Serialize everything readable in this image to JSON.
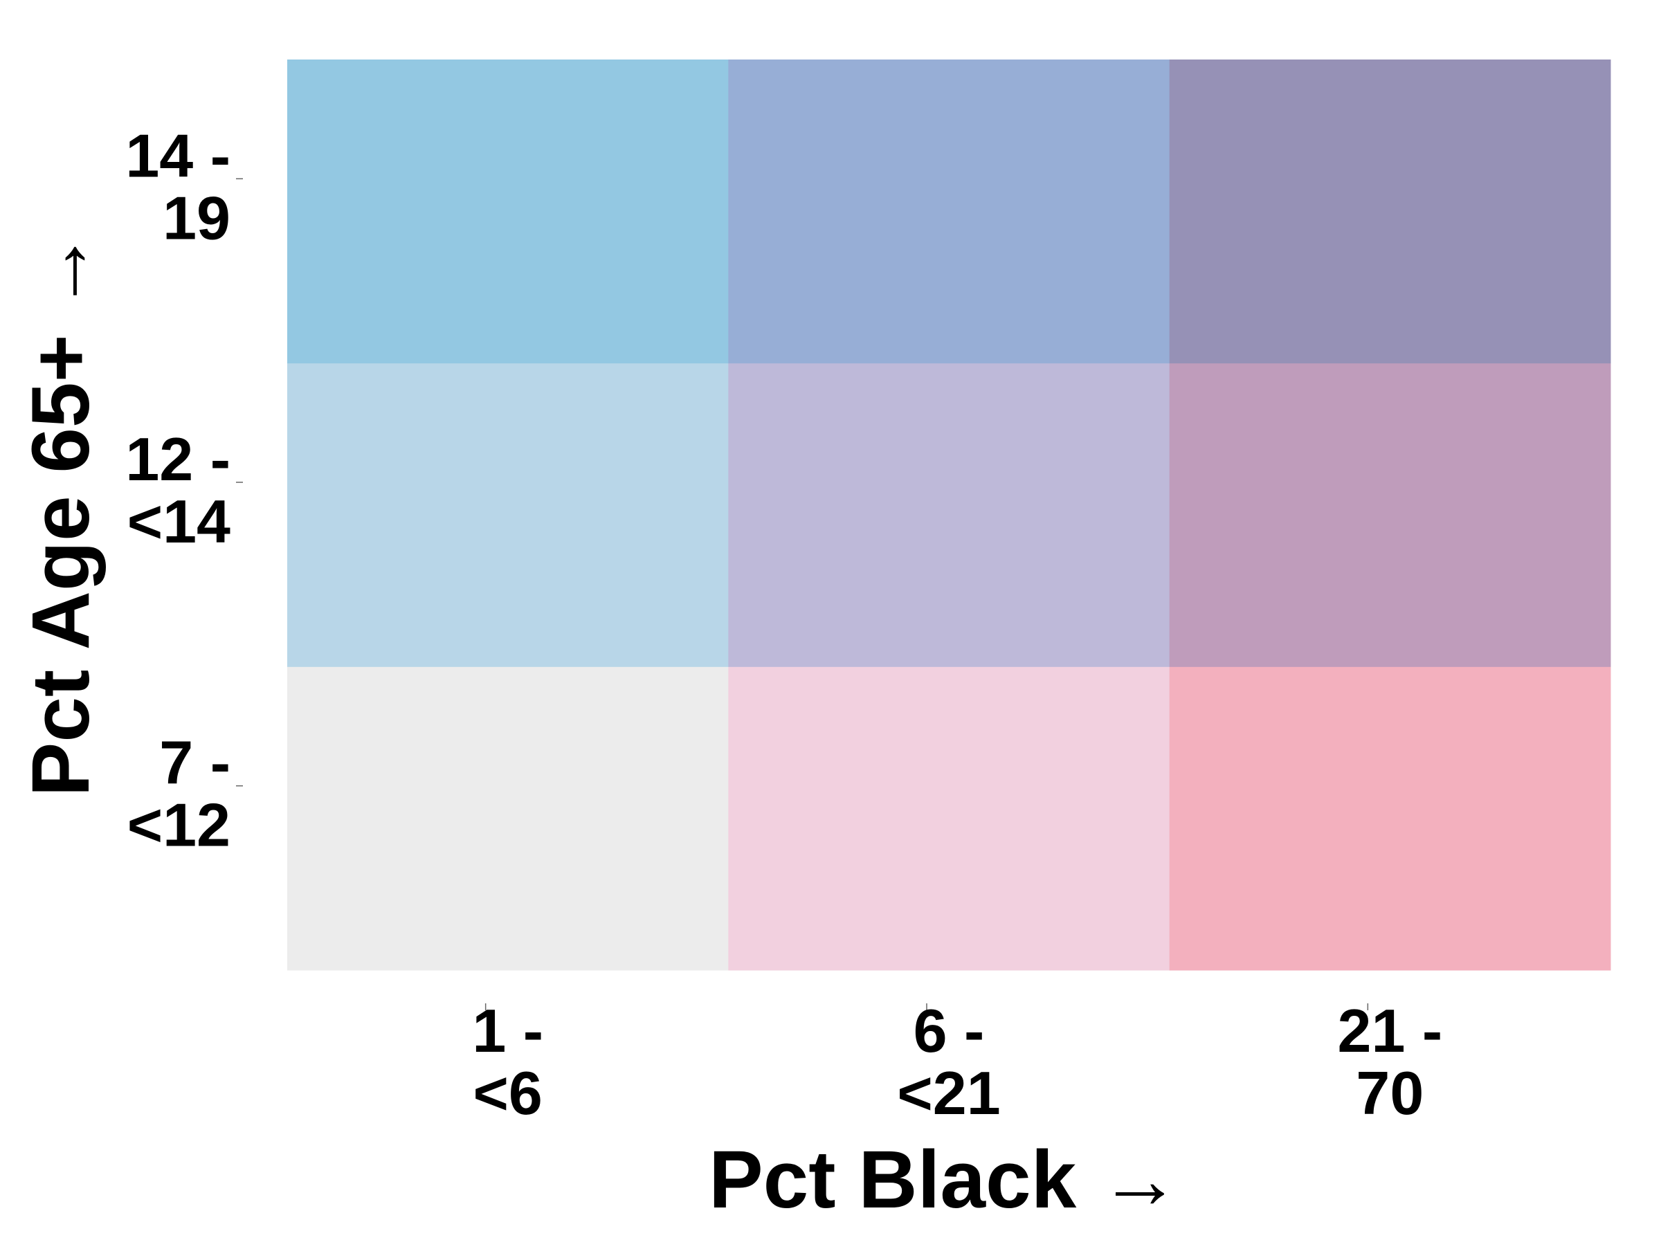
{
  "chart_data": {
    "type": "heatmap",
    "title": "",
    "xlabel": "Pct Black →",
    "ylabel": "Pct Age 65+ →",
    "x_categories": [
      [
        "1 -",
        "<6"
      ],
      [
        "6 -",
        "<21"
      ],
      [
        "21 -",
        "70"
      ]
    ],
    "y_categories": [
      [
        "7 -",
        "<12"
      ],
      [
        "12 -",
        "<14"
      ],
      [
        "14 -",
        "19"
      ]
    ],
    "grid": false,
    "legend": "none",
    "cells": [
      {
        "x": 0,
        "y": 0,
        "color": "#ececec"
      },
      {
        "x": 1,
        "y": 0,
        "color": "#f2d0df"
      },
      {
        "x": 2,
        "y": 0,
        "color": "#f3b0be"
      },
      {
        "x": 0,
        "y": 1,
        "color": "#b8d6e8"
      },
      {
        "x": 1,
        "y": 1,
        "color": "#beb9d9"
      },
      {
        "x": 2,
        "y": 1,
        "color": "#bf9cbb"
      },
      {
        "x": 0,
        "y": 2,
        "color": "#93c8e2"
      },
      {
        "x": 1,
        "y": 2,
        "color": "#97aed6"
      },
      {
        "x": 2,
        "y": 2,
        "color": "#9691b6"
      }
    ]
  }
}
